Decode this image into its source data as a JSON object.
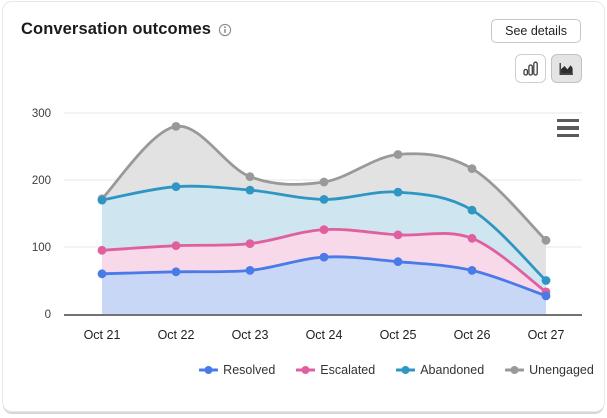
{
  "card": {
    "title": "Conversation outcomes",
    "see_details_label": "See details",
    "icons": {
      "info": "info-circle-icon",
      "bar_toggle": "bar-chart-icon",
      "area_toggle": "area-chart-icon",
      "menu": "hamburger-menu-icon"
    },
    "toolbar_selected": "area"
  },
  "chart_data": {
    "type": "area",
    "title": "Conversation outcomes",
    "categories": [
      "Oct 21",
      "Oct 22",
      "Oct 23",
      "Oct 24",
      "Oct 25",
      "Oct 26",
      "Oct 27"
    ],
    "series": [
      {
        "name": "Resolved",
        "color": "#4a79e8",
        "fill": "#c9d7f7",
        "values": [
          60,
          63,
          65,
          85,
          78,
          65,
          27
        ]
      },
      {
        "name": "Escalated",
        "color": "#e0609f",
        "fill": "#f7d9e9",
        "values": [
          95,
          102,
          105,
          126,
          118,
          113,
          33
        ]
      },
      {
        "name": "Abandoned",
        "color": "#2f96c4",
        "fill": "#cfe5ef",
        "values": [
          170,
          190,
          185,
          171,
          182,
          155,
          50
        ]
      },
      {
        "name": "Unengaged",
        "color": "#999999",
        "fill": "#e2e2e2",
        "values": [
          172,
          280,
          205,
          197,
          238,
          217,
          110
        ]
      }
    ],
    "ylim": [
      0,
      300
    ],
    "yticks": [
      0,
      100,
      200,
      300
    ],
    "grid": true,
    "legend_position": "bottom",
    "colors": {
      "grid_line": "#e7e7e7",
      "axis_line": "#444444",
      "tick_text": "#3d3d3d",
      "xlabel_text": "#1f1f1f"
    }
  }
}
